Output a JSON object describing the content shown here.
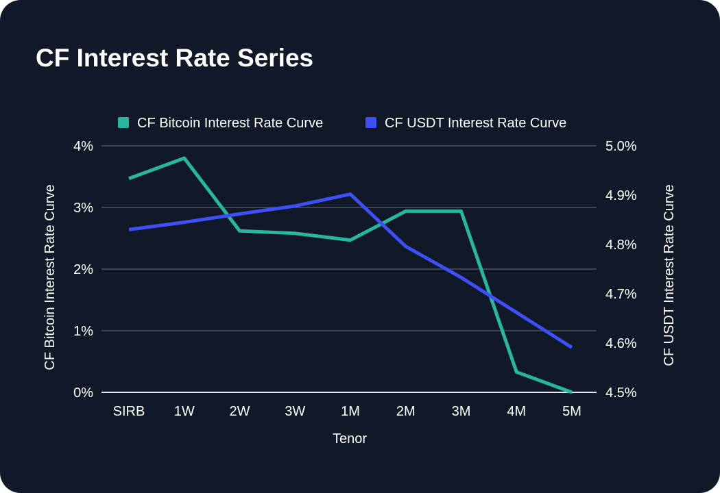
{
  "chart_data": {
    "type": "line",
    "title": "CF Interest Rate Series",
    "xlabel": "Tenor",
    "categories": [
      "SIRB",
      "1W",
      "2W",
      "3W",
      "1M",
      "2M",
      "3M",
      "4M",
      "5M"
    ],
    "legend": "top-center",
    "grid": true,
    "left_axis": {
      "label": "CF Bitcoin Interest Rate Curve",
      "range": [
        0,
        4
      ],
      "ticks": [
        0,
        1,
        2,
        3,
        4
      ],
      "tick_labels": [
        "0%",
        "1%",
        "2%",
        "3%",
        "4%"
      ]
    },
    "right_axis": {
      "label": "CF USDT Interest Rate Curve",
      "range": [
        4.5,
        5.0
      ],
      "ticks": [
        4.5,
        4.6,
        4.7,
        4.8,
        4.9,
        5.0
      ],
      "tick_labels": [
        "4.5%",
        "4.6%",
        "4.7%",
        "4.8%",
        "4.9%",
        "5.0%"
      ]
    },
    "series": [
      {
        "name": "CF Bitcoin Interest Rate Curve",
        "axis": "left",
        "color": "#2ab5a0",
        "values": [
          3.47,
          3.8,
          2.62,
          2.58,
          2.47,
          2.94,
          2.94,
          0.33,
          0.0
        ]
      },
      {
        "name": "CF USDT Interest Rate Curve",
        "axis": "right",
        "color": "#3d4ff5",
        "values": [
          4.83,
          4.845,
          4.862,
          4.878,
          4.902,
          4.796,
          4.733,
          4.662,
          4.591
        ]
      }
    ]
  }
}
